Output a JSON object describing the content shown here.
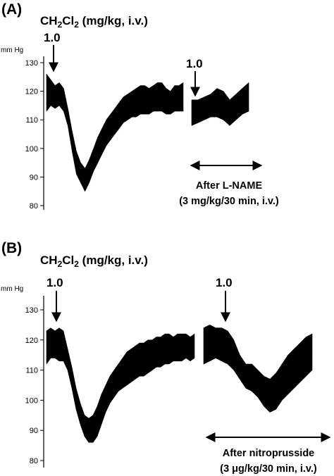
{
  "chart_data": [
    {
      "type": "line",
      "panel_label": "(A)",
      "drug_label": {
        "pre": "CH",
        "sub1": "2",
        "mid": "Cl",
        "sub2": "2",
        "post": " (mg/kg, i.v.)"
      },
      "unit_label": "mm Hg",
      "ylim": [
        80,
        130
      ],
      "yticks": [
        130,
        120,
        110,
        100,
        90,
        80
      ],
      "grid": false,
      "doses": [
        "1.0",
        "1.0"
      ],
      "condition_label": [
        "After L-NAME",
        "(3 mg/kg/30 min, i.v.)"
      ],
      "series": [
        {
          "x": [
            0,
            3,
            6,
            9,
            12,
            15,
            18,
            21,
            24,
            27,
            30,
            33,
            36,
            39,
            42,
            45,
            48,
            51,
            54,
            57,
            60,
            63,
            66,
            69,
            72,
            75,
            78,
            81,
            84,
            87,
            90,
            93,
            96
          ],
          "low": [
            113,
            115,
            114,
            115,
            113,
            108,
            99,
            91,
            88,
            85,
            88,
            92,
            95,
            98,
            101,
            103,
            105,
            107,
            109,
            110,
            111,
            111,
            112,
            112,
            112,
            113,
            113,
            113,
            112,
            112,
            113,
            113,
            113
          ],
          "high": [
            126,
            124,
            122,
            123,
            121,
            114,
            106,
            99,
            95,
            93,
            96,
            100,
            104,
            107,
            110,
            112,
            114,
            116,
            118,
            119,
            120,
            121,
            122,
            122,
            121,
            122,
            123,
            123,
            121,
            120,
            122,
            122,
            123
          ]
        },
        {
          "x": [
            0,
            3,
            6,
            9,
            12,
            15,
            18,
            21,
            24,
            27
          ],
          "low": [
            108,
            109,
            110,
            111,
            111,
            110,
            108,
            110,
            112,
            113
          ],
          "high": [
            117,
            117,
            118,
            119,
            121,
            120,
            117,
            119,
            121,
            123
          ]
        }
      ]
    },
    {
      "type": "line",
      "panel_label": "(B)",
      "drug_label": {
        "pre": "CH",
        "sub1": "2",
        "mid": "Cl",
        "sub2": "2",
        "post": " (mg/kg, i.v.)"
      },
      "unit_label": "mm Hg",
      "ylim": [
        80,
        130
      ],
      "yticks": [
        130,
        120,
        110,
        100,
        90,
        80
      ],
      "grid": false,
      "doses": [
        "1.0",
        "1.0"
      ],
      "condition_label": [
        "After nitroprusside",
        "(3 μg/kg/30 min, i.v.)"
      ],
      "series": [
        {
          "x": [
            0,
            3,
            6,
            9,
            12,
            15,
            18,
            21,
            24,
            27,
            30,
            33,
            36,
            39,
            42,
            45,
            48,
            51,
            54,
            57,
            60,
            63,
            66,
            69,
            72,
            75,
            78,
            81,
            84,
            87,
            90,
            93,
            96,
            99,
            102,
            105
          ],
          "low": [
            112,
            114,
            114,
            113,
            113,
            110,
            104,
            97,
            92,
            88,
            86,
            86,
            88,
            92,
            96,
            99,
            101,
            103,
            104,
            105,
            106,
            107,
            108,
            108,
            109,
            110,
            111,
            111,
            112,
            112,
            113,
            113,
            113,
            114,
            113,
            114
          ],
          "high": [
            123,
            124,
            123,
            124,
            123,
            117,
            111,
            104,
            99,
            95,
            94,
            95,
            98,
            102,
            105,
            108,
            110,
            112,
            114,
            116,
            117,
            118,
            119,
            119,
            120,
            120,
            121,
            121,
            122,
            122,
            121,
            122,
            122,
            122,
            121,
            122
          ]
        },
        {
          "x": [
            0,
            3,
            6,
            9,
            12,
            15,
            18,
            21,
            24,
            27,
            30,
            33,
            36,
            39,
            42,
            45,
            48,
            51,
            54
          ],
          "low": [
            112,
            113,
            114,
            113,
            112,
            110,
            107,
            104,
            103,
            101,
            98,
            96,
            97,
            100,
            102,
            104,
            106,
            108,
            110
          ],
          "high": [
            124,
            125,
            124,
            124,
            123,
            120,
            115,
            112,
            112,
            110,
            108,
            107,
            109,
            112,
            115,
            117,
            119,
            121,
            122
          ]
        }
      ]
    }
  ]
}
